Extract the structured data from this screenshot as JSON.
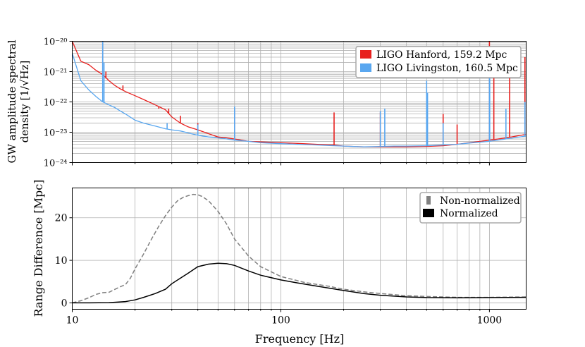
{
  "chart_data": [
    {
      "type": "line",
      "panel": "top",
      "xscale": "log",
      "yscale": "log",
      "xlim": [
        10,
        1500
      ],
      "ylim": [
        1e-24,
        1e-20
      ],
      "ylabel_lines": [
        "GW amplitude spectral",
        "density [1/√Hz]"
      ],
      "ytick_labels": [
        "10⁻²⁰",
        "10⁻²¹",
        "10⁻²²",
        "10⁻²³",
        "10⁻²⁴"
      ],
      "ytick_values": [
        1e-20,
        1e-21,
        1e-22,
        1e-23,
        1e-24
      ],
      "grid": true,
      "legend_position": "top-right",
      "series": [
        {
          "name": "LIGO Hanford, 159.2 Mpc",
          "color": "#e8201e",
          "x": [
            10,
            11,
            12,
            13,
            14,
            15,
            16,
            17,
            18,
            20,
            22,
            25,
            28,
            30,
            33,
            36,
            40,
            45,
            50,
            55,
            60,
            70,
            80,
            100,
            120,
            150,
            180,
            200,
            250,
            300,
            350,
            400,
            500,
            600,
            700,
            800,
            1000,
            1200,
            1500
          ],
          "y": [
            1e-20,
            2.2e-21,
            1.7e-21,
            1.1e-21,
            8e-22,
            5e-22,
            3.5e-22,
            2.7e-22,
            2.2e-22,
            1.6e-22,
            1.2e-22,
            8e-23,
            5.5e-23,
            3.2e-23,
            2e-23,
            1.5e-23,
            1.2e-23,
            9e-24,
            7e-24,
            6.5e-24,
            6e-24,
            5e-24,
            4.8e-24,
            4.5e-24,
            4.3e-24,
            4e-24,
            3.8e-24,
            3.5e-24,
            3.3e-24,
            3.3e-24,
            3.3e-24,
            3.3e-24,
            3.4e-24,
            3.6e-24,
            4e-24,
            4.5e-24,
            5.5e-24,
            6.5e-24,
            8.5e-24
          ],
          "spikes": [
            [
              14,
              1e-20
            ],
            [
              14.5,
              1e-21
            ],
            [
              17.5,
              3.5e-22
            ],
            [
              26,
              6e-23
            ],
            [
              27,
              6e-23
            ],
            [
              29,
              6e-23
            ],
            [
              33,
              3.5e-23
            ],
            [
              40,
              2e-23
            ],
            [
              60,
              6e-23
            ],
            [
              180,
              4.5e-23
            ],
            [
              300,
              4.5e-23
            ],
            [
              500,
              2e-22
            ],
            [
              600,
              4e-23
            ],
            [
              700,
              1.8e-23
            ],
            [
              1000,
              1e-20
            ],
            [
              1050,
              1e-21
            ],
            [
              1250,
              1e-21
            ],
            [
              1480,
              3e-21
            ]
          ]
        },
        {
          "name": "LIGO Livingston, 160.5 Mpc",
          "color": "#59a7f0",
          "x": [
            10,
            11,
            12,
            13,
            14,
            15,
            16,
            17,
            18,
            20,
            22,
            25,
            28,
            30,
            33,
            36,
            40,
            45,
            50,
            55,
            60,
            70,
            80,
            100,
            120,
            150,
            180,
            200,
            250,
            300,
            350,
            400,
            500,
            600,
            700,
            800,
            1000,
            1200,
            1500
          ],
          "y": [
            4e-21,
            5e-22,
            2.5e-22,
            1.5e-22,
            1e-22,
            8e-23,
            6.5e-23,
            5e-23,
            4e-23,
            2.5e-23,
            2e-23,
            1.6e-23,
            1.3e-23,
            1.2e-23,
            1.1e-23,
            9.5e-24,
            8e-24,
            7e-24,
            6.5e-24,
            6e-24,
            5.5e-24,
            5e-24,
            4.5e-24,
            4.2e-24,
            4e-24,
            3.8e-24,
            3.6e-24,
            3.5e-24,
            3.3e-24,
            3.4e-24,
            3.5e-24,
            3.5e-24,
            3.6e-24,
            3.8e-24,
            4e-24,
            4.4e-24,
            5e-24,
            6e-24,
            7.5e-24
          ],
          "spikes": [
            [
              14,
              1e-20
            ],
            [
              14.2,
              2e-21
            ],
            [
              28.5,
              2e-23
            ],
            [
              40,
              1.8e-23
            ],
            [
              60,
              7e-23
            ],
            [
              300,
              5e-23
            ],
            [
              315,
              6e-23
            ],
            [
              500,
              5e-22
            ],
            [
              505,
              2e-22
            ],
            [
              600,
              2e-23
            ],
            [
              1000,
              5e-21
            ],
            [
              1003,
              1e-21
            ],
            [
              1200,
              6e-23
            ],
            [
              1480,
              1e-22
            ]
          ]
        }
      ]
    },
    {
      "type": "line",
      "panel": "bottom",
      "xscale": "log",
      "xlim": [
        10,
        1500
      ],
      "ylim": [
        -1.5,
        27
      ],
      "xlabel": "Frequency [Hz]",
      "ylabel": "Range Difference [Mpc]",
      "xtick_labels": [
        "10",
        "100",
        "1000"
      ],
      "xtick_values": [
        10,
        100,
        1000
      ],
      "ytick_labels": [
        "0",
        "10",
        "20"
      ],
      "ytick_values": [
        0,
        10,
        20
      ],
      "grid": true,
      "legend_position": "top-right",
      "series": [
        {
          "name": "Non-normalized",
          "color": "#808080",
          "style": "dashed",
          "x": [
            10,
            11,
            12,
            13,
            14,
            15,
            17,
            18,
            19,
            20,
            22,
            24,
            26,
            28,
            30,
            32,
            34,
            36,
            38,
            40,
            42,
            45,
            50,
            55,
            60,
            70,
            80,
            100,
            130,
            170,
            200,
            250,
            300,
            400,
            500,
            700,
            1000,
            1500
          ],
          "y": [
            0,
            0.5,
            1.2,
            2.0,
            2.4,
            2.5,
            3.8,
            4.3,
            5.8,
            8.0,
            11.5,
            15.0,
            18.0,
            20.5,
            22.5,
            24.0,
            24.8,
            25.2,
            25.5,
            25.4,
            25.0,
            24.0,
            21.5,
            18.5,
            15.0,
            11.0,
            8.5,
            6.2,
            4.8,
            3.9,
            3.2,
            2.6,
            2.2,
            1.7,
            1.5,
            1.3,
            1.3,
            1.4
          ]
        },
        {
          "name": "Normalized",
          "color": "#000000",
          "style": "solid",
          "x": [
            10,
            12,
            15,
            18,
            20,
            22,
            25,
            28,
            30,
            33,
            36,
            40,
            45,
            50,
            55,
            60,
            70,
            80,
            100,
            120,
            150,
            200,
            250,
            300,
            400,
            500,
            700,
            1000,
            1500
          ],
          "y": [
            0,
            0,
            0.05,
            0.3,
            0.7,
            1.3,
            2.2,
            3.2,
            4.5,
            5.8,
            7.0,
            8.5,
            9.1,
            9.3,
            9.2,
            8.8,
            7.5,
            6.5,
            5.4,
            4.7,
            3.9,
            2.9,
            2.2,
            1.8,
            1.4,
            1.25,
            1.2,
            1.25,
            1.3
          ]
        }
      ]
    }
  ]
}
